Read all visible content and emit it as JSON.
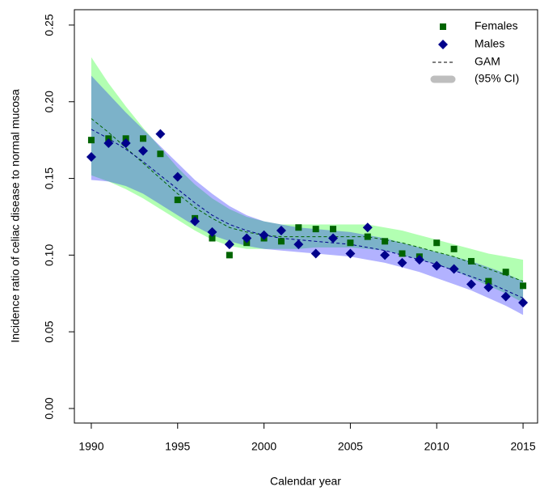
{
  "chart_data": {
    "type": "scatter",
    "x_label": "Calendar year",
    "y_label": "Incidence ratio of celiac disease to normal mucosa",
    "x": [
      1990,
      1991,
      1992,
      1993,
      1994,
      1995,
      1996,
      1997,
      1998,
      1999,
      2000,
      2001,
      2002,
      2003,
      2004,
      2005,
      2006,
      2007,
      2008,
      2009,
      2010,
      2011,
      2012,
      2013,
      2014,
      2015
    ],
    "series": [
      {
        "name": "Females",
        "color": "#006400",
        "marker": "square",
        "values": [
          0.175,
          0.176,
          0.176,
          0.176,
          0.166,
          0.136,
          0.124,
          0.111,
          0.1,
          0.108,
          0.111,
          0.109,
          0.118,
          0.117,
          0.117,
          0.108,
          0.112,
          0.109,
          0.101,
          0.099,
          0.108,
          0.104,
          0.096,
          0.083,
          0.089,
          0.08
        ]
      },
      {
        "name": "Males",
        "color": "#00008b",
        "marker": "diamond",
        "values": [
          0.164,
          0.173,
          0.173,
          0.168,
          0.179,
          0.151,
          0.122,
          0.115,
          0.107,
          0.111,
          0.113,
          0.116,
          0.107,
          0.101,
          0.111,
          0.101,
          0.118,
          0.1,
          0.095,
          0.097,
          0.093,
          0.091,
          0.081,
          0.079,
          0.073,
          0.069
        ]
      }
    ],
    "gam": {
      "name": "GAM",
      "band_name": "(95% CI)",
      "legend_color": "#bebebe",
      "fits": [
        {
          "color": "#006400",
          "band_color": "#00ff00",
          "values": [
            0.189,
            0.18,
            0.17,
            0.16,
            0.15,
            0.14,
            0.131,
            0.124,
            0.118,
            0.115,
            0.113,
            0.112,
            0.112,
            0.112,
            0.112,
            0.112,
            0.112,
            0.11,
            0.108,
            0.105,
            0.102,
            0.099,
            0.095,
            0.091,
            0.087,
            0.083
          ],
          "lower": [
            0.152,
            0.148,
            0.143,
            0.137,
            0.13,
            0.123,
            0.116,
            0.11,
            0.106,
            0.104,
            0.104,
            0.104,
            0.104,
            0.105,
            0.105,
            0.105,
            0.104,
            0.103,
            0.1,
            0.097,
            0.094,
            0.09,
            0.085,
            0.08,
            0.075,
            0.069
          ],
          "upper": [
            0.229,
            0.212,
            0.197,
            0.183,
            0.17,
            0.157,
            0.146,
            0.137,
            0.13,
            0.125,
            0.122,
            0.12,
            0.12,
            0.12,
            0.12,
            0.12,
            0.12,
            0.118,
            0.116,
            0.113,
            0.11,
            0.107,
            0.104,
            0.101,
            0.099,
            0.097
          ]
        },
        {
          "color": "#00008b",
          "band_color": "#0000ff",
          "values": [
            0.182,
            0.176,
            0.169,
            0.161,
            0.152,
            0.143,
            0.134,
            0.126,
            0.12,
            0.116,
            0.113,
            0.111,
            0.11,
            0.109,
            0.108,
            0.107,
            0.105,
            0.103,
            0.1,
            0.097,
            0.094,
            0.09,
            0.086,
            0.082,
            0.077,
            0.072
          ],
          "lower": [
            0.149,
            0.148,
            0.145,
            0.14,
            0.133,
            0.126,
            0.119,
            0.113,
            0.109,
            0.106,
            0.104,
            0.103,
            0.102,
            0.101,
            0.1,
            0.099,
            0.097,
            0.095,
            0.092,
            0.089,
            0.085,
            0.081,
            0.077,
            0.072,
            0.067,
            0.061
          ],
          "upper": [
            0.217,
            0.205,
            0.193,
            0.182,
            0.171,
            0.16,
            0.149,
            0.14,
            0.132,
            0.126,
            0.122,
            0.12,
            0.118,
            0.117,
            0.116,
            0.115,
            0.113,
            0.111,
            0.108,
            0.105,
            0.102,
            0.099,
            0.096,
            0.092,
            0.088,
            0.083
          ]
        }
      ]
    },
    "xlim": [
      1989.02,
      2015.84
    ],
    "xticks": [
      1990,
      1995,
      2000,
      2005,
      2010,
      2015
    ],
    "ylim": [
      -0.0095,
      0.26
    ],
    "yticks": [
      {
        "value": 0,
        "label": "0.00"
      },
      {
        "value": 0.05,
        "label": "0.05"
      },
      {
        "value": 0.1,
        "label": "0.10"
      },
      {
        "value": 0.15,
        "label": "0.15"
      },
      {
        "value": 0.2,
        "label": "0.20"
      },
      {
        "value": 0.25,
        "label": "0.25"
      }
    ],
    "legend": "top-right"
  }
}
